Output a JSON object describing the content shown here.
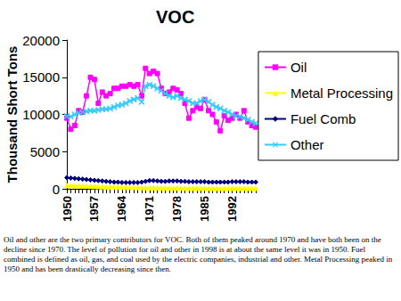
{
  "chart_data": {
    "type": "line",
    "title": "VOC",
    "y_label": "Thousand Short Tons",
    "caption": "Oil and other are the two primary contributors for VOC.  Both of them peaked around 1970 and have both been on the decline since 1970.  The level of pollution for oil and other in 1998 is at about the same level it was in 1950.  Fuel combined is defined as oil, gas, and coal used by the electric companies, industrial and other.  Metal Processing peaked in 1950 and has been drastically decreasing since then.",
    "categories": [
      "1950",
      null,
      null,
      null,
      null,
      null,
      null,
      "1957",
      null,
      null,
      null,
      null,
      null,
      null,
      "1964",
      null,
      null,
      null,
      null,
      null,
      null,
      "1971",
      null,
      null,
      null,
      null,
      null,
      null,
      "1978",
      null,
      null,
      null,
      null,
      null,
      null,
      "1985",
      null,
      null,
      null,
      null,
      null,
      null,
      "1992",
      null,
      null,
      null,
      null,
      null,
      null
    ],
    "series": [
      {
        "name": "Oil",
        "color": "#ff00ff",
        "marker": "square",
        "values": [
          9500,
          8000,
          8500,
          10500,
          10300,
          12500,
          15000,
          14700,
          11500,
          13000,
          12500,
          12800,
          13500,
          13500,
          13800,
          13800,
          14000,
          13800,
          14000,
          12500,
          16200,
          15500,
          15800,
          15500,
          13500,
          12800,
          13000,
          13500,
          13300,
          12800,
          11500,
          9500,
          10500,
          11000,
          10800,
          12000,
          10500,
          10000,
          9000,
          7800,
          9800,
          9200,
          9500,
          10000,
          9500,
          10500,
          9000,
          8500,
          8300
        ]
      },
      {
        "name": "Metal Processing",
        "color": "#ffff00",
        "marker": "triangle",
        "values": [
          450,
          430,
          420,
          400,
          380,
          360,
          340,
          320,
          300,
          280,
          260,
          250,
          240,
          230,
          220,
          210,
          200,
          190,
          180,
          170,
          160,
          150,
          140,
          130,
          120,
          110,
          100,
          100,
          100,
          90,
          90,
          80,
          80,
          80,
          80,
          80,
          70,
          70,
          70,
          70,
          70,
          70,
          70,
          70,
          70,
          70,
          70,
          70,
          70
        ]
      },
      {
        "name": "Fuel Comb",
        "color": "#000080",
        "marker": "diamond",
        "values": [
          1500,
          1450,
          1400,
          1350,
          1300,
          1250,
          1200,
          1150,
          1100,
          1050,
          1000,
          950,
          900,
          900,
          850,
          850,
          850,
          850,
          850,
          900,
          1000,
          1100,
          1100,
          1050,
          1000,
          1000,
          1050,
          1050,
          1050,
          1000,
          1000,
          950,
          950,
          950,
          950,
          950,
          900,
          900,
          900,
          900,
          900,
          900,
          950,
          950,
          950,
          950,
          900,
          900,
          900
        ]
      },
      {
        "name": "Other",
        "color": "#33ccff",
        "marker": "x",
        "values": [
          9800,
          9700,
          10000,
          10200,
          10300,
          10400,
          10500,
          10500,
          10600,
          10700,
          10700,
          10800,
          11000,
          11200,
          11300,
          11500,
          11800,
          12000,
          12200,
          11700,
          13800,
          14000,
          13800,
          13500,
          13200,
          12800,
          12500,
          12300,
          12500,
          12200,
          12000,
          11800,
          11500,
          11500,
          11800,
          12000,
          11700,
          11300,
          11000,
          10800,
          10500,
          10300,
          10000,
          9800,
          9700,
          9500,
          9300,
          9000,
          8800
        ]
      }
    ],
    "ylim": [
      0,
      20000
    ],
    "yticks": [
      0,
      5000,
      10000,
      15000,
      20000
    ],
    "grid": false,
    "legend": "right"
  }
}
